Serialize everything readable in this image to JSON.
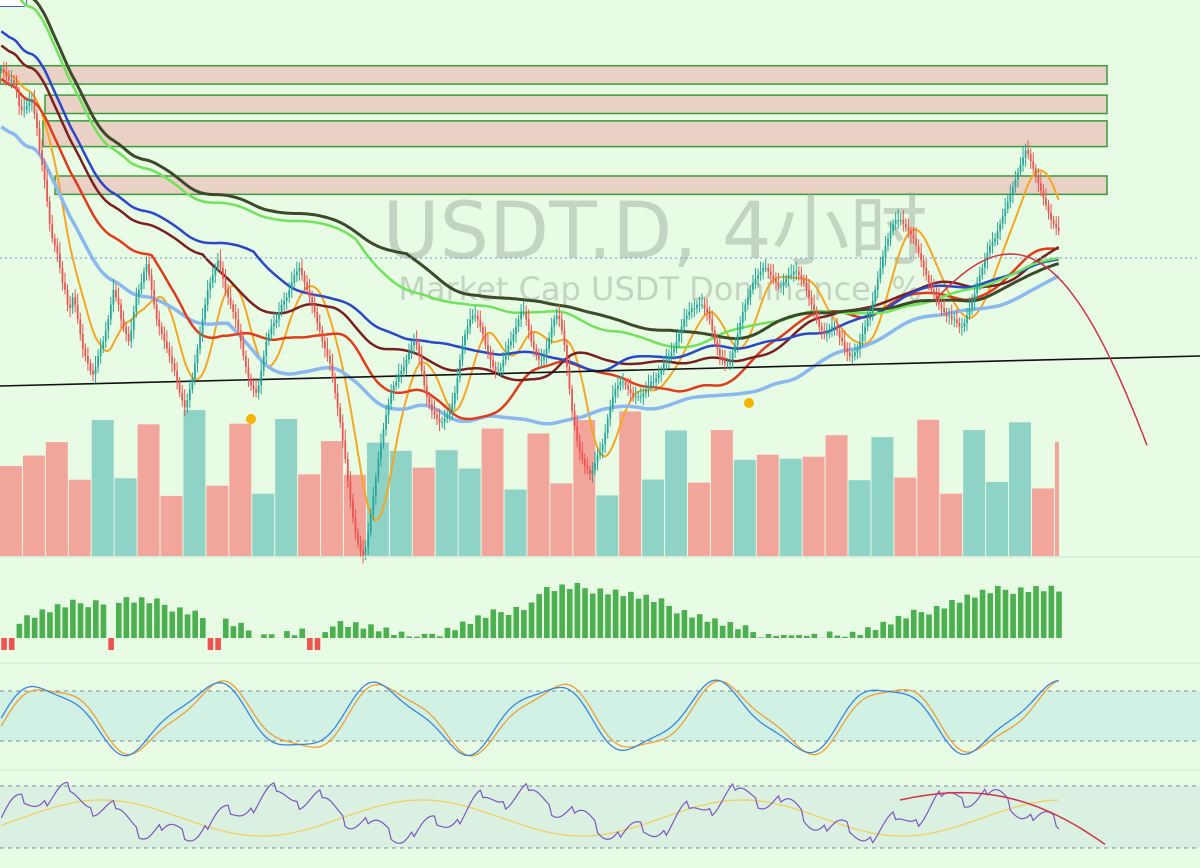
{
  "watermark": {
    "title": "USDT.D, 4小时",
    "subtitle": "Market Cap USDT Dominance, %"
  },
  "colors": {
    "background": "#e8fbe4",
    "candle_up": "#26a69a",
    "candle_down": "#ef5350",
    "volume_up": "#8fd3c7",
    "volume_down": "#f2a69b",
    "zone_fill": "#e9d1c6",
    "zone_border": "#3a9b3a",
    "ma_orange": "#f5a623",
    "ma_red": "#e03c1c",
    "ma_maroon": "#7a1f22",
    "ma_blue": "#2a46c9",
    "ma_lightblue": "#8ab8ef",
    "ma_green": "#6fe35a",
    "ma_darkgreen": "#3d4a2a",
    "forecast": "#d0344a",
    "trendline": "#111111",
    "macd_up": "#4caf50",
    "macd_down": "#ef5350",
    "stoch_k": "#3d86e0",
    "stoch_d": "#f0a030",
    "stoch_band": "#c8ece6",
    "rsi_line": "#7e57c2",
    "rsi_ma": "#f0d060",
    "rsi_band": "#d6eedf"
  },
  "chart_data": [
    {
      "type": "candlestick",
      "grid": false,
      "zones": [
        [
          8.35,
          8.3
        ],
        [
          8.27,
          8.22
        ],
        [
          8.2,
          8.13
        ],
        [
          8.05,
          8.0
        ]
      ],
      "closes": [
        8.34,
        8.33,
        8.32,
        8.31,
        8.31,
        8.3,
        8.28,
        8.24,
        8.23,
        8.23,
        8.24,
        8.25,
        8.26,
        8.22,
        8.18,
        8.12,
        8.08,
        8.04,
        7.98,
        7.92,
        7.88,
        7.86,
        7.84,
        7.8,
        7.76,
        7.74,
        7.7,
        7.69,
        7.72,
        7.7,
        7.66,
        7.62,
        7.58,
        7.56,
        7.54,
        7.52,
        7.51,
        7.53,
        7.56,
        7.58,
        7.6,
        7.63,
        7.66,
        7.7,
        7.74,
        7.72,
        7.7,
        7.66,
        7.64,
        7.62,
        7.6,
        7.63,
        7.68,
        7.72,
        7.74,
        7.76,
        7.79,
        7.81,
        7.78,
        7.74,
        7.7,
        7.66,
        7.64,
        7.62,
        7.6,
        7.58,
        7.56,
        7.54,
        7.52,
        7.49,
        7.46,
        7.44,
        7.42,
        7.44,
        7.47,
        7.5,
        7.54,
        7.58,
        7.62,
        7.66,
        7.7,
        7.74,
        7.76,
        7.78,
        7.8,
        7.82,
        7.8,
        7.77,
        7.74,
        7.72,
        7.7,
        7.68,
        7.66,
        7.63,
        7.6,
        7.56,
        7.53,
        7.5,
        7.48,
        7.47,
        7.46,
        7.48,
        7.52,
        7.56,
        7.6,
        7.62,
        7.64,
        7.65,
        7.66,
        7.68,
        7.7,
        7.71,
        7.72,
        7.74,
        7.76,
        7.78,
        7.79,
        7.8,
        7.78,
        7.76,
        7.74,
        7.72,
        7.7,
        7.68,
        7.65,
        7.63,
        7.6,
        7.58,
        7.56,
        7.54,
        7.5,
        7.46,
        7.42,
        7.38,
        7.33,
        7.28,
        7.22,
        7.17,
        7.12,
        7.08,
        7.05,
        7.03,
        7.02,
        7.04,
        7.08,
        7.13,
        7.18,
        7.23,
        7.28,
        7.32,
        7.36,
        7.4,
        7.43,
        7.46,
        7.48,
        7.49,
        7.51,
        7.52,
        7.53,
        7.55,
        7.57,
        7.59,
        7.6,
        7.59,
        7.56,
        7.52,
        7.48,
        7.45,
        7.43,
        7.41,
        7.4,
        7.39,
        7.38,
        7.38,
        7.39,
        7.4,
        7.41,
        7.43,
        7.46,
        7.5,
        7.55,
        7.59,
        7.62,
        7.64,
        7.66,
        7.67,
        7.67,
        7.66,
        7.64,
        7.62,
        7.59,
        7.57,
        7.55,
        7.53,
        7.52,
        7.52,
        7.53,
        7.55,
        7.57,
        7.59,
        7.6,
        7.62,
        7.64,
        7.66,
        7.68,
        7.68,
        7.66,
        7.63,
        7.6,
        7.58,
        7.56,
        7.55,
        7.55,
        7.56,
        7.58,
        7.61,
        7.64,
        7.66,
        7.67,
        7.66,
        7.63,
        7.59,
        7.53,
        7.47,
        7.41,
        7.37,
        7.33,
        7.3,
        7.28,
        7.26,
        7.25,
        7.24,
        7.25,
        7.27,
        7.29,
        7.3,
        7.32,
        7.35,
        7.39,
        7.42,
        7.45,
        7.47,
        7.48,
        7.49,
        7.49,
        7.48,
        7.47,
        7.46,
        7.45,
        7.45,
        7.45,
        7.45,
        7.46,
        7.47,
        7.48,
        7.49,
        7.49,
        7.5,
        7.51,
        7.52,
        7.54,
        7.55,
        7.56,
        7.57,
        7.58,
        7.6,
        7.62,
        7.64,
        7.66,
        7.67,
        7.68,
        7.69,
        7.69,
        7.7,
        7.7,
        7.7,
        7.69,
        7.68,
        7.66,
        7.63,
        7.6,
        7.58,
        7.56,
        7.55,
        7.54,
        7.54,
        7.55,
        7.57,
        7.59,
        7.62,
        7.65,
        7.68,
        7.7,
        7.72,
        7.74,
        7.76,
        7.77,
        7.78,
        7.79,
        7.8,
        7.8,
        7.79,
        7.78,
        7.77,
        7.76,
        7.75,
        7.75,
        7.76,
        7.77,
        7.78,
        7.78,
        7.79,
        7.79,
        7.78,
        7.77,
        7.76,
        7.74,
        7.72,
        7.7,
        7.68,
        7.66,
        7.64,
        7.63,
        7.62,
        7.62,
        7.63,
        7.64,
        7.64,
        7.63,
        7.61,
        7.6,
        7.58,
        7.57,
        7.56,
        7.56,
        7.57,
        7.58,
        7.6,
        7.62,
        7.64,
        7.66,
        7.68,
        7.71,
        7.74,
        7.77,
        7.8,
        7.83,
        7.86,
        7.88,
        7.9,
        7.92,
        7.93,
        7.93,
        7.93,
        7.92,
        7.91,
        7.9,
        7.89,
        7.88,
        7.86,
        7.84,
        7.82,
        7.8,
        7.78,
        7.76,
        7.74,
        7.73,
        7.72,
        7.7,
        7.69,
        7.68,
        7.67,
        7.67,
        7.66,
        7.66,
        7.65,
        7.64,
        7.64,
        7.65,
        7.67,
        7.69,
        7.71,
        7.73,
        7.76,
        7.78,
        7.8,
        7.82,
        7.84,
        7.86,
        7.87,
        7.88,
        7.9,
        7.92,
        7.94,
        7.96,
        7.98,
        8.0,
        8.02,
        8.04,
        8.06,
        8.08,
        8.1,
        8.12,
        8.11,
        8.09,
        8.07,
        8.05,
        8.03,
        8.01,
        7.99,
        7.97,
        7.95,
        7.93,
        7.92,
        7.91,
        7.9
      ],
      "candles_per_bar": 3,
      "ylim": [
        7.25,
        8.42
      ]
    }
  ]
}
